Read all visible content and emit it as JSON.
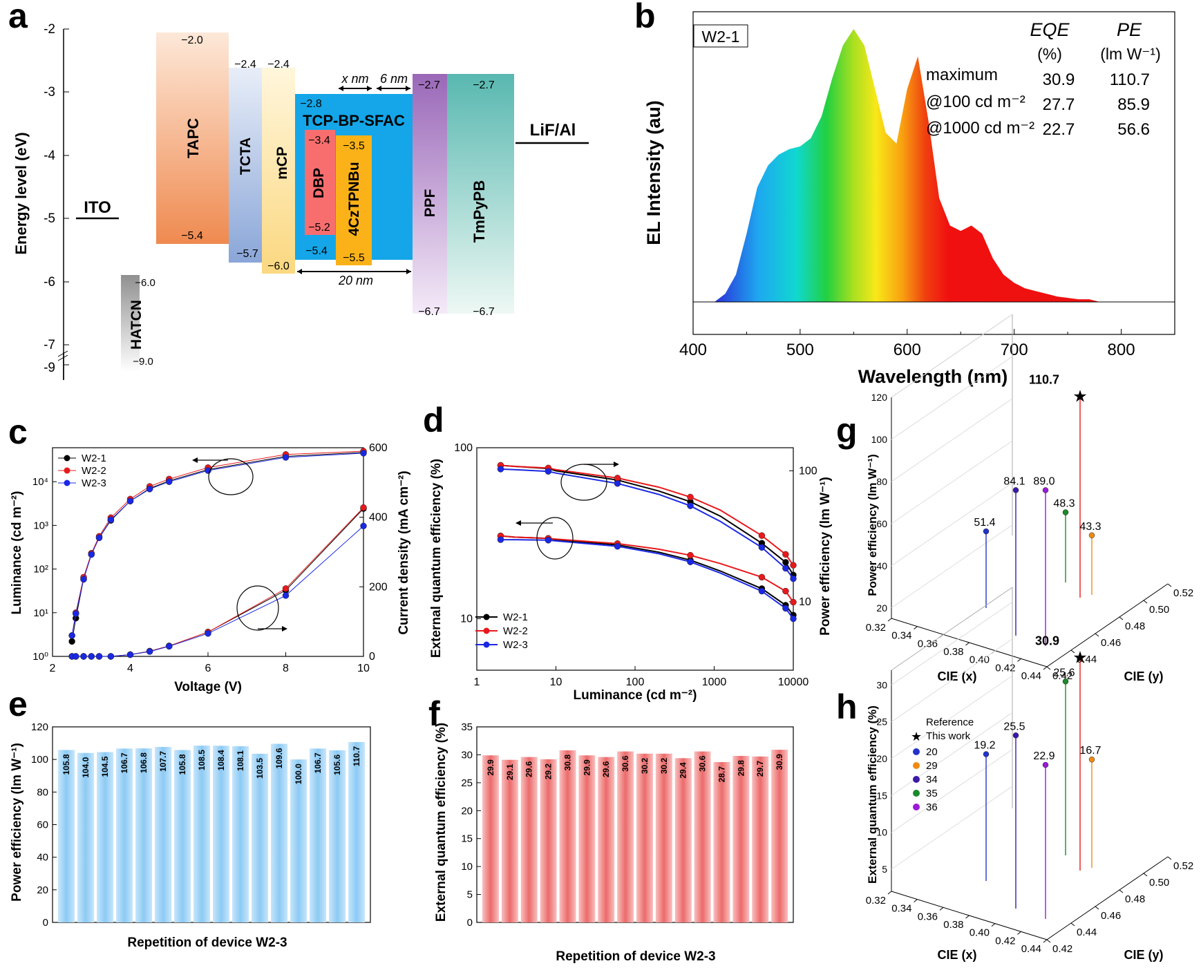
{
  "panels": {
    "a": {
      "letter": "a",
      "ylabel": "Energy level (eV)",
      "yticks": [
        "-2",
        "-3",
        "-4",
        "-5",
        "-6",
        "-7",
        "-9"
      ],
      "ito": "ITO",
      "lif": "LiF/Al",
      "bars": [
        {
          "label": "TAPC",
          "top": "−2.0",
          "bottom": "−5.4"
        },
        {
          "label": "TCTA",
          "top": "−2.4",
          "bottom": "−5.7"
        },
        {
          "label": "mCP",
          "top": "−2.4",
          "bottom": "−6.0"
        },
        {
          "label": "TCP-BP-SFAC",
          "top": "−2.8",
          "bottom": "−5.4"
        },
        {
          "label": "DBP",
          "top": "−3.4",
          "bottom": "−5.2"
        },
        {
          "label": "4CzTPNBu",
          "top": "−3.5",
          "bottom": "−5.5"
        },
        {
          "label": "PPF",
          "top": "−2.7",
          "bottom": "−6.7"
        },
        {
          "label": "TmPyPB",
          "top": "−2.7",
          "bottom": "−6.7"
        },
        {
          "label": "HATCN",
          "top": "−6.0",
          "bottom": "−9.0"
        }
      ],
      "xnm": "x nm",
      "six": "6 nm",
      "twenty": "20 nm"
    },
    "b": {
      "letter": "b",
      "device": "W2-1",
      "xlabel": "Wavelength (nm)",
      "ylabel": "EL Intensity (au)",
      "xticks": [
        "400",
        "500",
        "600",
        "700",
        "800"
      ],
      "table": {
        "col1": "EQE",
        "col2": "PE",
        "unit1": "(%)",
        "unit2": "(lm W⁻¹)",
        "rows": [
          {
            "label": "maximum",
            "eqe": "30.9",
            "pe": "110.7"
          },
          {
            "label": "@100 cd m⁻²",
            "eqe": "27.7",
            "pe": "85.9"
          },
          {
            "label": "@1000 cd m⁻²",
            "eqe": "22.7",
            "pe": "56.6"
          }
        ]
      }
    },
    "c": {
      "letter": "c",
      "xlabel": "Voltage (V)",
      "ylabel": "Luminance (cd m⁻²)",
      "y2label": "Current density (mA cm⁻²)",
      "xticks": [
        "2",
        "4",
        "6",
        "8",
        "10"
      ],
      "yticks": [
        "10⁰",
        "10¹",
        "10²",
        "10³",
        "10⁴"
      ],
      "y2ticks": [
        "0",
        "200",
        "400",
        "600"
      ],
      "legend": [
        "W2-1",
        "W2-2",
        "W2-3"
      ]
    },
    "d": {
      "letter": "d",
      "xlabel": "Luminance (cd m⁻²)",
      "ylabel": "External quantum efficiency (%)",
      "y2label": "Power efficiency (lm W⁻¹)",
      "xticks": [
        "1",
        "10",
        "100",
        "1000",
        "10000"
      ],
      "yticks": [
        "10",
        "100"
      ],
      "y2ticks": [
        "10",
        "100"
      ],
      "legend": [
        "W2-1",
        "W2-2",
        "W2-3"
      ]
    },
    "e": {
      "letter": "e",
      "xlabel": "Repetition of device W2-3",
      "ylabel": "Power efficiency (lm W⁻¹)",
      "yticks": [
        "0",
        "20",
        "40",
        "60",
        "80",
        "100",
        "120"
      ]
    },
    "f": {
      "letter": "f",
      "xlabel": "Repetition of device W2-3",
      "ylabel": "External quantum efficiency (%)",
      "yticks": [
        "0",
        "5",
        "10",
        "15",
        "20",
        "25",
        "30",
        "35"
      ]
    },
    "g": {
      "letter": "g",
      "zlabel": "Power efficiency (lm W⁻¹)",
      "xlabel": "CIE (x)",
      "ylabel": "CIE (y)",
      "zticks": [
        "20",
        "40",
        "60",
        "80",
        "100",
        "120"
      ],
      "xticks": [
        "0.32",
        "0.34",
        "0.36",
        "0.38",
        "0.40",
        "0.42",
        "0.44"
      ],
      "yticks": [
        "0.42",
        "0.44",
        "0.46",
        "0.48",
        "0.50",
        "0.52"
      ]
    },
    "h": {
      "letter": "h",
      "zlabel": "External quantum efficiency (%)",
      "xlabel": "CIE (x)",
      "ylabel": "CIE (y)",
      "zticks": [
        "5",
        "10",
        "15",
        "20",
        "25",
        "30"
      ],
      "xticks": [
        "0.32",
        "0.34",
        "0.36",
        "0.38",
        "0.40",
        "0.42",
        "0.44"
      ],
      "yticks": [
        "0.42",
        "0.44",
        "0.46",
        "0.48",
        "0.50",
        "0.52"
      ],
      "legend_title": "Reference",
      "legend": [
        "This work",
        "20",
        "29",
        "34",
        "35",
        "36"
      ]
    }
  },
  "colors": {
    "w21": "#000000",
    "w22": "#e8191c",
    "w23": "#1a28e6",
    "pe_bar": "#9fd3f7",
    "eqe_bar": "#f07a7a",
    "ref20": "#2233cc",
    "ref29": "#f08a10",
    "ref34": "#3a1aa8",
    "ref35": "#1a8a2a",
    "ref36": "#9a1ad8",
    "thiswork": "#e8191c"
  },
  "chart_data": [
    {
      "panel": "b",
      "type": "area",
      "title": "W2-1",
      "xlabel": "Wavelength (nm)",
      "ylabel": "EL Intensity (au)",
      "xlim": [
        400,
        850
      ],
      "x": [
        420,
        430,
        440,
        450,
        460,
        470,
        480,
        490,
        500,
        510,
        520,
        530,
        540,
        550,
        560,
        570,
        580,
        590,
        600,
        610,
        620,
        630,
        640,
        650,
        660,
        670,
        680,
        690,
        700,
        710,
        720,
        730,
        740,
        750,
        760,
        770,
        780
      ],
      "y": [
        0.0,
        0.03,
        0.1,
        0.25,
        0.42,
        0.5,
        0.54,
        0.56,
        0.57,
        0.6,
        0.68,
        0.82,
        0.94,
        1.0,
        0.94,
        0.78,
        0.62,
        0.58,
        0.78,
        0.9,
        0.66,
        0.38,
        0.28,
        0.26,
        0.28,
        0.25,
        0.16,
        0.1,
        0.07,
        0.05,
        0.04,
        0.03,
        0.02,
        0.015,
        0.01,
        0.01,
        0.0
      ]
    },
    {
      "panel": "c",
      "type": "line",
      "xlabel": "Voltage (V)",
      "ylabel": "Luminance (cd m⁻²)",
      "y2label": "Current density (mA cm⁻²)",
      "xlim": [
        2,
        10
      ],
      "ylim": [
        1,
        60000
      ],
      "yscale": "log",
      "y2lim": [
        0,
        600
      ],
      "x": [
        2.5,
        2.6,
        2.8,
        3.0,
        3.2,
        3.5,
        4.0,
        4.5,
        5.0,
        6.0,
        8.0,
        10.0
      ],
      "luminance": [
        {
          "name": "W2-1",
          "values": [
            2.2,
            7.5,
            60,
            220,
            520,
            1300,
            3600,
            7000,
            10500,
            19000,
            38000,
            47000
          ]
        },
        {
          "name": "W2-2",
          "values": [
            3.0,
            10,
            65,
            230,
            560,
            1500,
            4000,
            7800,
            11500,
            21000,
            42000,
            50000
          ]
        },
        {
          "name": "W2-3",
          "values": [
            3.0,
            9.5,
            58,
            215,
            520,
            1350,
            3600,
            6800,
            10000,
            18000,
            36000,
            45000
          ]
        }
      ],
      "current_density": [
        {
          "name": "W2-1",
          "values": [
            0,
            0,
            0,
            0,
            0,
            0,
            5,
            15,
            30,
            70,
            190,
            425
          ]
        },
        {
          "name": "W2-2",
          "values": [
            0,
            0,
            0,
            0,
            0,
            0,
            5,
            15,
            30,
            70,
            195,
            428
          ]
        },
        {
          "name": "W2-3",
          "values": [
            0,
            0,
            0,
            0,
            0,
            0,
            5,
            14,
            29,
            66,
            175,
            375
          ]
        }
      ]
    },
    {
      "panel": "d",
      "type": "line",
      "xlabel": "Luminance (cd m⁻²)",
      "ylabel": "External quantum efficiency (%)",
      "y2label": "Power efficiency (lm W⁻¹)",
      "xscale": "log",
      "xlim": [
        1,
        10000
      ],
      "yscale": "log",
      "ylim": [
        5,
        100
      ],
      "y2scale": "log",
      "y2lim": [
        3,
        150
      ],
      "x": [
        2,
        3,
        8,
        10,
        60,
        200,
        500,
        1200,
        4000,
        8000,
        10000
      ],
      "eqe": [
        {
          "name": "W2-1",
          "values": [
            30.5,
            30.0,
            29.5,
            29.0,
            27.0,
            24.5,
            22.0,
            19.0,
            15.0,
            12.0,
            10.5
          ]
        },
        {
          "name": "W2-2",
          "values": [
            30.5,
            30.0,
            29.5,
            29.2,
            27.5,
            25.5,
            23.5,
            21.0,
            17.5,
            14.5,
            12.5
          ]
        },
        {
          "name": "W2-3",
          "values": [
            29.0,
            29.0,
            28.8,
            28.5,
            26.5,
            24.0,
            21.5,
            18.5,
            14.5,
            11.5,
            10.0
          ]
        }
      ],
      "pe": [
        {
          "name": "W2-1",
          "values": [
            110,
            108,
            104,
            100,
            85,
            70,
            58,
            45,
            28,
            20,
            16
          ]
        },
        {
          "name": "W2-2",
          "values": [
            110,
            108,
            105,
            102,
            88,
            75,
            63,
            50,
            32,
            23,
            19
          ]
        },
        {
          "name": "W2-3",
          "values": [
            103,
            102,
            99,
            96,
            80,
            66,
            54,
            41,
            26,
            18,
            15
          ]
        }
      ]
    },
    {
      "panel": "e",
      "type": "bar",
      "xlabel": "Repetition of device W2-3",
      "ylabel": "Power efficiency (lm W⁻¹)",
      "ylim": [
        0,
        120
      ],
      "values": [
        105.8,
        104.0,
        104.5,
        106.7,
        106.8,
        107.7,
        105.8,
        108.5,
        108.4,
        108.1,
        103.5,
        109.6,
        100.0,
        106.7,
        105.6,
        110.7
      ],
      "labels": [
        "105.8",
        "104.0",
        "104.5",
        "106.7",
        "106.8",
        "107.7",
        "105.8",
        "108.5",
        "108.4",
        "108.1",
        "103.5",
        "109.6",
        "100.0",
        "106.7",
        "105.6",
        "110.7"
      ]
    },
    {
      "panel": "f",
      "type": "bar",
      "xlabel": "Repetition of device W2-3",
      "ylabel": "External quantum efficiency (%)",
      "ylim": [
        0,
        35
      ],
      "values": [
        29.9,
        29.1,
        29.6,
        29.2,
        30.8,
        29.9,
        29.6,
        30.6,
        30.2,
        30.2,
        29.4,
        30.6,
        28.7,
        29.8,
        29.7,
        30.9
      ],
      "labels": [
        "29.9",
        "29.1",
        "29.6",
        "29.2",
        "30.8",
        "29.9",
        "29.6",
        "30.6",
        "30.2",
        "30.2",
        "29.4",
        "30.6",
        "28.7",
        "29.8",
        "29.7",
        "30.9"
      ]
    },
    {
      "panel": "g",
      "type": "scatter",
      "zlabel": "Power efficiency (lm W⁻¹)",
      "points": [
        {
          "value": 51.4,
          "label": "51.4",
          "color": "#2233cc"
        },
        {
          "value": 84.1,
          "label": "84.1",
          "color": "#3a1aa8"
        },
        {
          "value": 89.0,
          "label": "89.0",
          "color": "#9a1ad8"
        },
        {
          "value": 110.7,
          "label": "110.7",
          "color": "#e8191c"
        },
        {
          "value": 48.3,
          "label": "48.3",
          "color": "#1a8a2a"
        },
        {
          "value": 43.3,
          "label": "43.3",
          "color": "#f08a10"
        }
      ]
    },
    {
      "panel": "h",
      "type": "scatter",
      "zlabel": "External quantum efficiency (%)",
      "points": [
        {
          "value": 19.2,
          "label": "19.2",
          "color": "#2233cc"
        },
        {
          "value": 25.5,
          "label": "25.5",
          "color": "#3a1aa8"
        },
        {
          "value": 22.9,
          "label": "22.9",
          "color": "#9a1ad8"
        },
        {
          "value": 30.9,
          "label": "30.9",
          "color": "#e8191c"
        },
        {
          "value": 25.6,
          "label": "25.6",
          "color": "#1a8a2a"
        },
        {
          "value": 16.7,
          "label": "16.7",
          "color": "#f08a10"
        }
      ]
    }
  ]
}
